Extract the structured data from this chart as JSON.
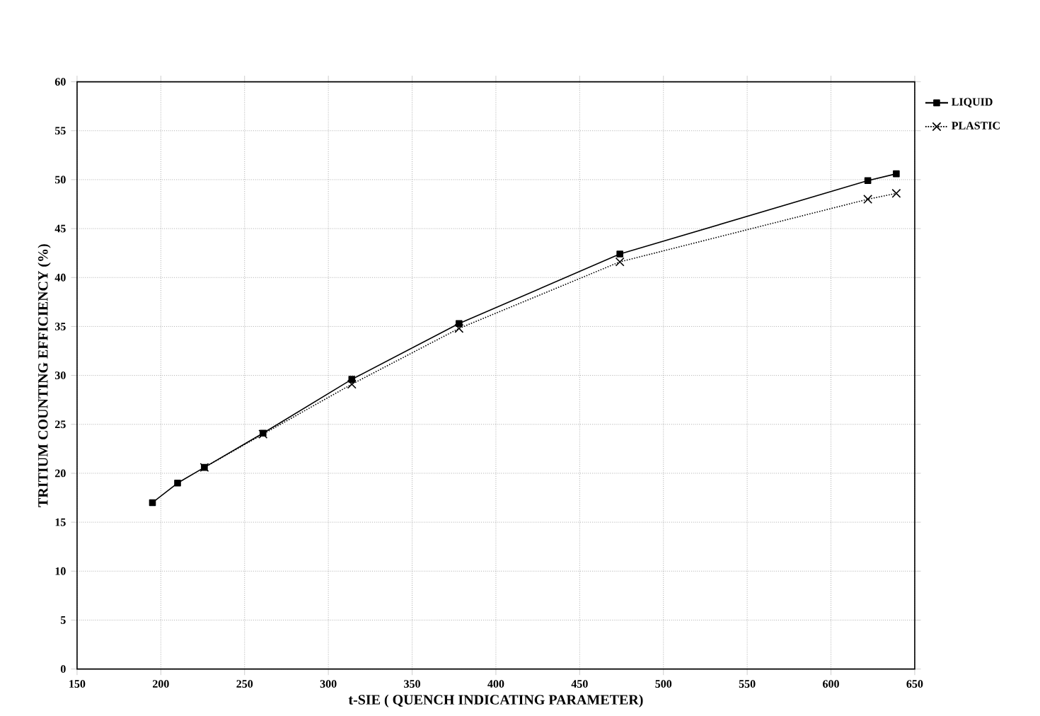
{
  "chart_data": {
    "type": "line",
    "xlabel": "t-SIE ( QUENCH INDICATING PARAMETER)",
    "ylabel": "TRITIUM COUNTING EFFICIENCY (%)",
    "xlim": [
      150,
      650
    ],
    "xticks": [
      150,
      200,
      250,
      300,
      350,
      400,
      450,
      500,
      550,
      600,
      650
    ],
    "ylim": [
      0,
      60
    ],
    "yticks": [
      0,
      5,
      10,
      15,
      20,
      25,
      30,
      35,
      40,
      45,
      50,
      55,
      60
    ],
    "grid": true,
    "legend": "top right",
    "series": [
      {
        "name": "LIQUID",
        "color": "#000000",
        "marker": "square",
        "line_style": "solid",
        "x": [
          195,
          210,
          226,
          261,
          314,
          378,
          474,
          622,
          639
        ],
        "values": [
          17,
          19,
          20.6,
          24.1,
          29.6,
          35.3,
          42.4,
          49.9,
          50.6
        ]
      },
      {
        "name": "PLASTIC",
        "color": "#000000",
        "marker": "cross",
        "line_style": "dotted",
        "x": [
          226,
          261,
          314,
          378,
          474,
          622,
          639
        ],
        "values": [
          20.6,
          24,
          29.1,
          34.8,
          41.6,
          48,
          48.6
        ]
      }
    ]
  }
}
